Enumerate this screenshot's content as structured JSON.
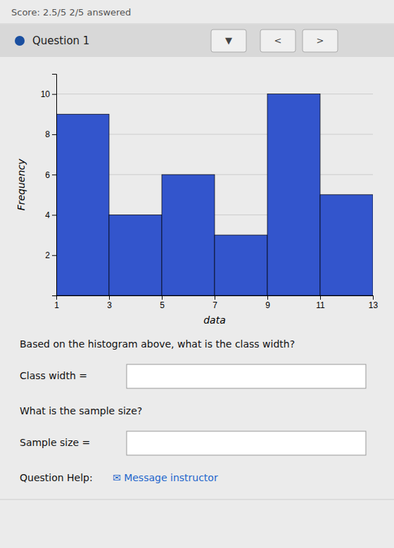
{
  "chart_data": {
    "type": "histogram",
    "bins": [
      1,
      3,
      5,
      7,
      9,
      11,
      13
    ],
    "values": [
      9,
      4,
      6,
      3,
      10,
      5
    ],
    "color": "#3355cc",
    "xlim": [
      1,
      13
    ],
    "ylim": [
      0,
      11
    ],
    "xticks": [
      1,
      3,
      5,
      7,
      9,
      11,
      13
    ],
    "yticks": [
      2,
      4,
      6,
      8,
      10
    ],
    "xlabel": "data",
    "ylabel": "Frequency",
    "grid": true,
    "annotations": [
      "Score: 2.5/5    2/5 answered",
      "Question 1",
      "▼",
      "<",
      ">",
      "Based on the histogram above, what is the class width?",
      "Class width =",
      "What is the sample size?",
      "Sample size =",
      "Question Help:",
      "✉ Message instructor"
    ]
  }
}
